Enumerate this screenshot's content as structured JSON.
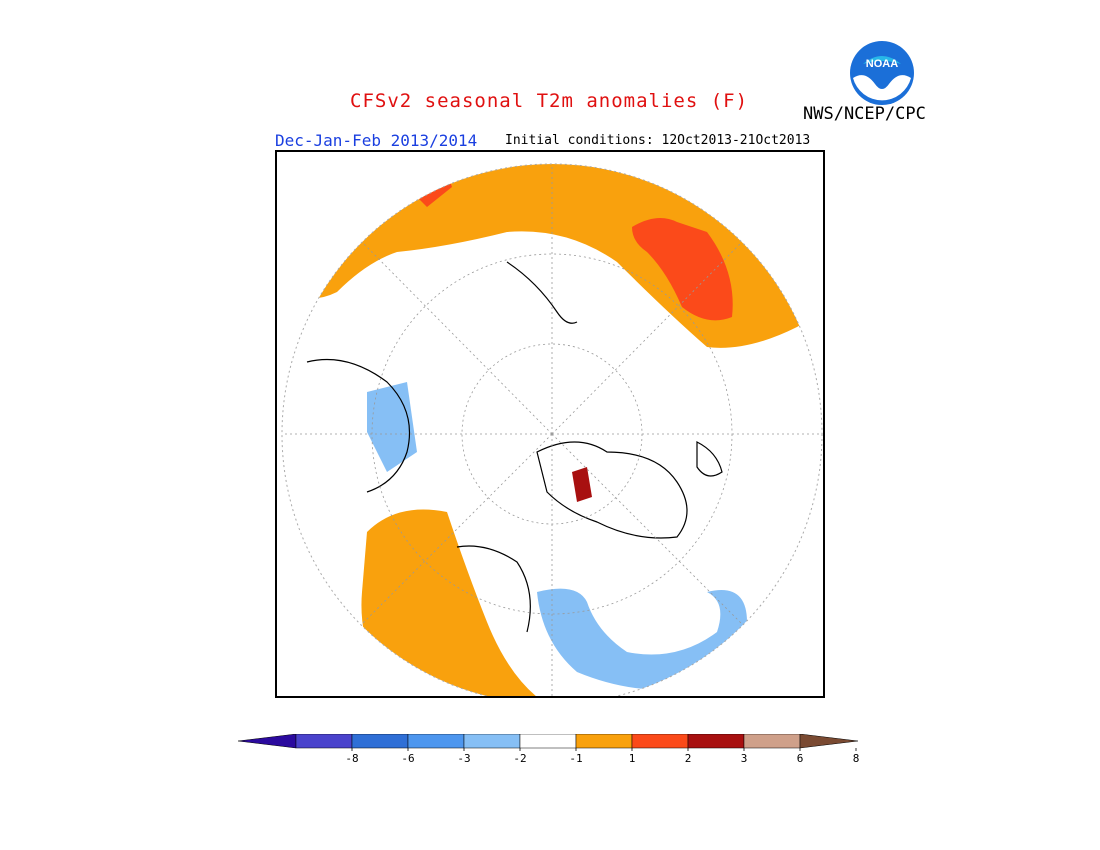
{
  "header": {
    "title": "CFSv2 seasonal T2m anomalies (F)",
    "title_color": "#e01010",
    "season": "Dec-Jan-Feb 2013/2014",
    "season_color": "#1a3fe0",
    "initial_conditions": "Initial conditions: 12Oct2013-21Oct2013",
    "agency": "NWS/NCEP/CPC",
    "logo_text": "NOAA"
  },
  "colorbar": {
    "unit": "F",
    "tick_labels": [
      "-8",
      "-6",
      "-3",
      "-2",
      "-1",
      "1",
      "2",
      "3",
      "6",
      "8"
    ],
    "colors": [
      "#2b0a9e",
      "#4a43cc",
      "#2f6fd6",
      "#4d96ee",
      "#86bff5",
      "#ffffff",
      "#f9a10d",
      "#fb4a1a",
      "#a81010",
      "#cfa08a",
      "#7a4a32"
    ],
    "ranges": [
      "< -8",
      "-8 to -6",
      "-6 to -3",
      "-3 to -2",
      "-2 to -1",
      "-1 to 1",
      "1 to 2",
      "2 to 3",
      "3 to 6",
      "6 to 8",
      "> 8"
    ]
  },
  "map": {
    "projection": "north polar stereographic",
    "anomaly_regions": [
      {
        "region": "northern Eurasia / Siberia",
        "category": "1 to 2"
      },
      {
        "region": "eastern Siberia core",
        "category": "2 to 3"
      },
      {
        "region": "Pacific northwest North America",
        "category": "1 to 2"
      },
      {
        "region": "Scandinavia",
        "category": "3 to 6"
      },
      {
        "region": "eastern Canada / Hudson Bay",
        "category": "-2 to -1"
      },
      {
        "region": "Alaska / Bering",
        "category": "-2 to -1"
      }
    ]
  }
}
